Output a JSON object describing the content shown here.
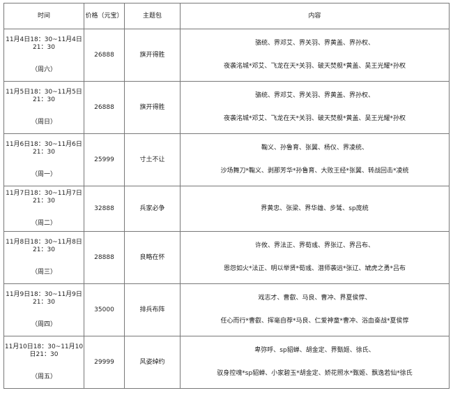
{
  "headers": {
    "time": "时间",
    "price": "价格（元宝）",
    "theme": "主题包",
    "content": "内容"
  },
  "rows": [
    {
      "time": "11月4日18：30~11月4日21：30",
      "day": "（周六）",
      "price": "26888",
      "theme": "旗开得胜",
      "line1": "骆统、界邓艾、界关羽、界黄盖、界孙权、",
      "line2": "夜袭洺城*邓艾、飞龙在天*关羽、破天焚舰*黄盖、吴王光耀*孙权"
    },
    {
      "time": "11月5日18：30~11月5日21：30",
      "day": "（周日）",
      "price": "26888",
      "theme": "旗开得胜",
      "line1": "骆统、界邓艾、界关羽、界黄盖、界孙权、",
      "line2": "夜袭洺城*邓艾、飞龙在天*关羽、破天焚舰*黄盖、吴王光耀*孙权"
    },
    {
      "time": "11月6日18：30~11月6日21：30",
      "day": "（周一）",
      "price": "25999",
      "theme": "寸土不让",
      "line1": "鞠义、孙鲁育、张翼、杨仪、界凌统、",
      "line2": "沙场舞刀*鞠义、剥那芳华*孙鲁育、大败王经*张翼、转战回击*凌统"
    },
    {
      "time": "11月7日18：30~11月7日21：30",
      "day": "（周二）",
      "price": "32888",
      "theme": "兵家必争",
      "line1": "界黄忠、张梁、界华雄、步骘、sp庞统",
      "line2": ""
    },
    {
      "time": "11月8日18：30~11月8日21：30",
      "day": "（周三）",
      "price": "28888",
      "theme": "良略在怀",
      "line1": "许攸、界法正、界荀彧、界张辽、界吕布、",
      "line2": "恩怨如火*法正、明以举贤*荀彧、潜师袭远*张辽、虓虎之勇*吕布"
    },
    {
      "time": "11月9日18：30~11月9日21：30",
      "day": "（周四）",
      "price": "35000",
      "theme": "排兵布阵",
      "line1": "戏志才、曹叡、马良、曹冲、界夏侯惇、",
      "line2": "任心而行*曹叡、挥毫自荐*马良、仁爱神童*曹冲、浴血奋战*夏侯惇"
    },
    {
      "time": "11月10日18：30~11月10日21：30",
      "day": "（周五）",
      "price": "29999",
      "theme": "风姿绰约",
      "line1": "卑弥呼、sp貂蝉、胡金定、界甄姬、徐氏、",
      "line2": "驭身控魂*sp貂蝉、小家碧玉*胡金定、娇花照水*甄姬、飘逸若仙*徐氏"
    }
  ]
}
